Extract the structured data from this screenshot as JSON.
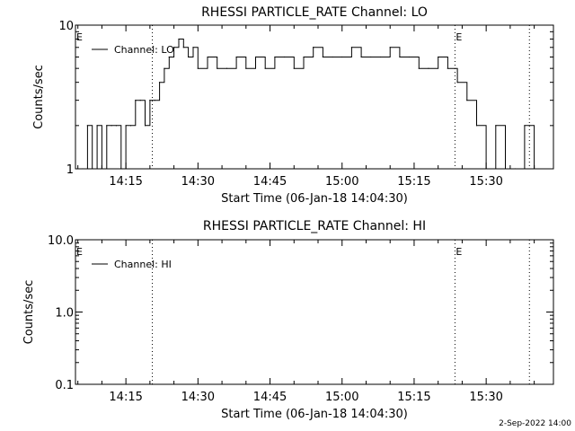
{
  "chart_data": [
    {
      "type": "line",
      "title": "RHESSI PARTICLE_RATE Channel: LO",
      "xlabel": "Start Time (06-Jan-18 14:04:30)",
      "ylabel": "Counts/sec",
      "yscale": "log",
      "ylim": [
        1,
        10
      ],
      "yticks": [
        1,
        10
      ],
      "ytick_labels": [
        "1",
        "10"
      ],
      "xlim_minutes": [
        "14:04:30",
        "15:44:00"
      ],
      "xticks": [
        "14:15",
        "14:30",
        "14:45",
        "15:00",
        "15:15",
        "15:30"
      ],
      "grid": false,
      "legend": "top-left",
      "series": [
        {
          "name": "Channel: LO",
          "x": [
            "14:06:00",
            "14:07:00",
            "14:08:00",
            "14:09:00",
            "14:10:00",
            "14:11:00",
            "14:12:00",
            "14:13:00",
            "14:14:00",
            "14:15:00",
            "14:16:00",
            "14:17:00",
            "14:18:00",
            "14:19:00",
            "14:20:00",
            "14:21:00",
            "14:22:00",
            "14:23:00",
            "14:24:00",
            "14:25:00",
            "14:26:00",
            "14:27:00",
            "14:28:00",
            "14:29:00",
            "14:30:00",
            "14:32:00",
            "14:34:00",
            "14:36:00",
            "14:38:00",
            "14:40:00",
            "14:42:00",
            "14:44:00",
            "14:46:00",
            "14:48:00",
            "14:50:00",
            "14:52:00",
            "14:54:00",
            "14:56:00",
            "14:58:00",
            "15:00:00",
            "15:02:00",
            "15:04:00",
            "15:06:00",
            "15:08:00",
            "15:10:00",
            "15:12:00",
            "15:14:00",
            "15:16:00",
            "15:18:00",
            "15:20:00",
            "15:22:00",
            "15:24:00",
            "15:26:00",
            "15:28:00",
            "15:30:00",
            "15:32:00",
            "15:34:00",
            "15:36:00",
            "15:38:00",
            "15:40:00"
          ],
          "y": [
            1,
            2,
            1,
            2,
            1,
            2,
            2,
            2,
            1,
            2,
            2,
            3,
            3,
            2,
            3,
            3,
            4,
            5,
            6,
            7,
            8,
            7,
            6,
            7,
            5,
            6,
            5,
            5,
            6,
            5,
            6,
            5,
            6,
            6,
            5,
            6,
            7,
            6,
            6,
            6,
            7,
            6,
            6,
            6,
            7,
            6,
            6,
            5,
            5,
            6,
            5,
            4,
            3,
            2,
            1,
            2,
            1,
            1,
            2,
            1
          ]
        }
      ],
      "markers": [
        {
          "label": "E",
          "time": "14:04:30"
        },
        {
          "label": "",
          "time": "14:20:30"
        },
        {
          "label": "E",
          "time": "15:23:30"
        },
        {
          "label": "",
          "time": "15:39:00"
        }
      ]
    },
    {
      "type": "line",
      "title": "RHESSI PARTICLE_RATE Channel: HI",
      "xlabel": "Start Time (06-Jan-18 14:04:30)",
      "ylabel": "Counts/sec",
      "yscale": "log",
      "ylim": [
        0.1,
        10
      ],
      "yticks": [
        0.1,
        1,
        10
      ],
      "ytick_labels": [
        "0.1",
        "1.0",
        "10.0"
      ],
      "xlim_minutes": [
        "14:04:30",
        "15:44:00"
      ],
      "xticks": [
        "14:15",
        "14:30",
        "14:45",
        "15:00",
        "15:15",
        "15:30"
      ],
      "grid": false,
      "legend": "top-left",
      "series": [
        {
          "name": "Channel: HI",
          "x": [],
          "y": []
        }
      ],
      "markers": [
        {
          "label": "E",
          "time": "14:04:30"
        },
        {
          "label": "",
          "time": "14:20:30"
        },
        {
          "label": "E",
          "time": "15:23:30"
        },
        {
          "label": "",
          "time": "15:39:00"
        }
      ]
    }
  ],
  "footer": {
    "timestamp": "2-Sep-2022 14:00"
  },
  "colors": {
    "background": "#ffffff",
    "foreground": "#000000"
  }
}
